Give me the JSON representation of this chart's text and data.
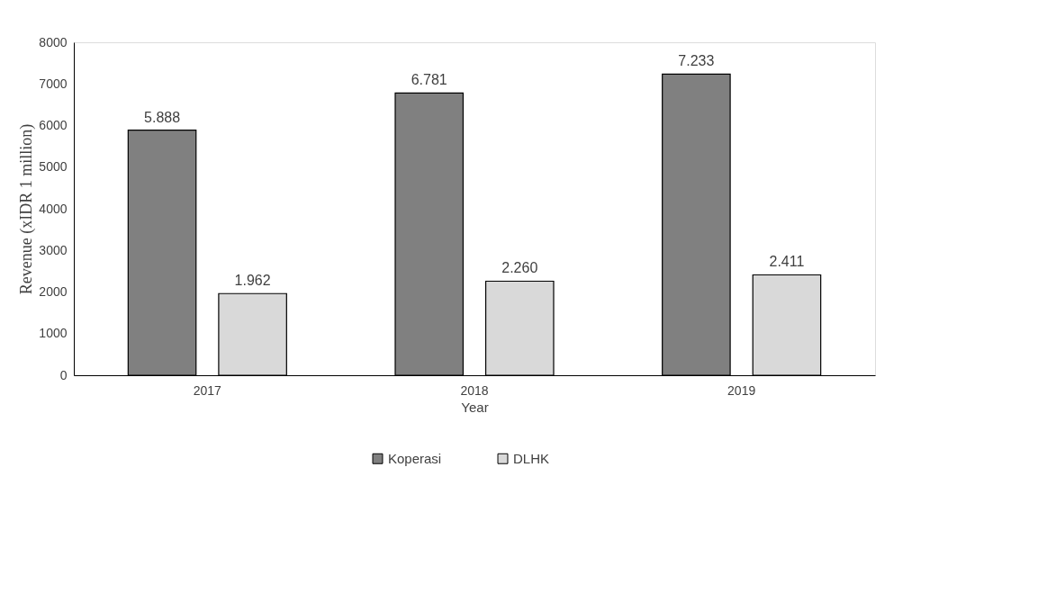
{
  "chart_data": {
    "type": "bar",
    "xlabel": "Year",
    "ylabel": "Revenue (xIDR 1 million)",
    "categories": [
      "2017",
      "2018",
      "2019"
    ],
    "series": [
      {
        "name": "Koperasi",
        "color": "#808080",
        "values": [
          5888,
          6781,
          7233
        ],
        "value_labels": [
          "5.888",
          "6.781",
          "7.233"
        ]
      },
      {
        "name": "DLHK",
        "color": "#d9d9d9",
        "values": [
          1962,
          2260,
          2411
        ],
        "value_labels": [
          "1.962",
          "2.260",
          "2.411"
        ]
      }
    ],
    "ylim": [
      0,
      8000
    ],
    "yticks": [
      0,
      1000,
      2000,
      3000,
      4000,
      5000,
      6000,
      7000,
      8000
    ],
    "grid": false,
    "legend": "bottom"
  }
}
